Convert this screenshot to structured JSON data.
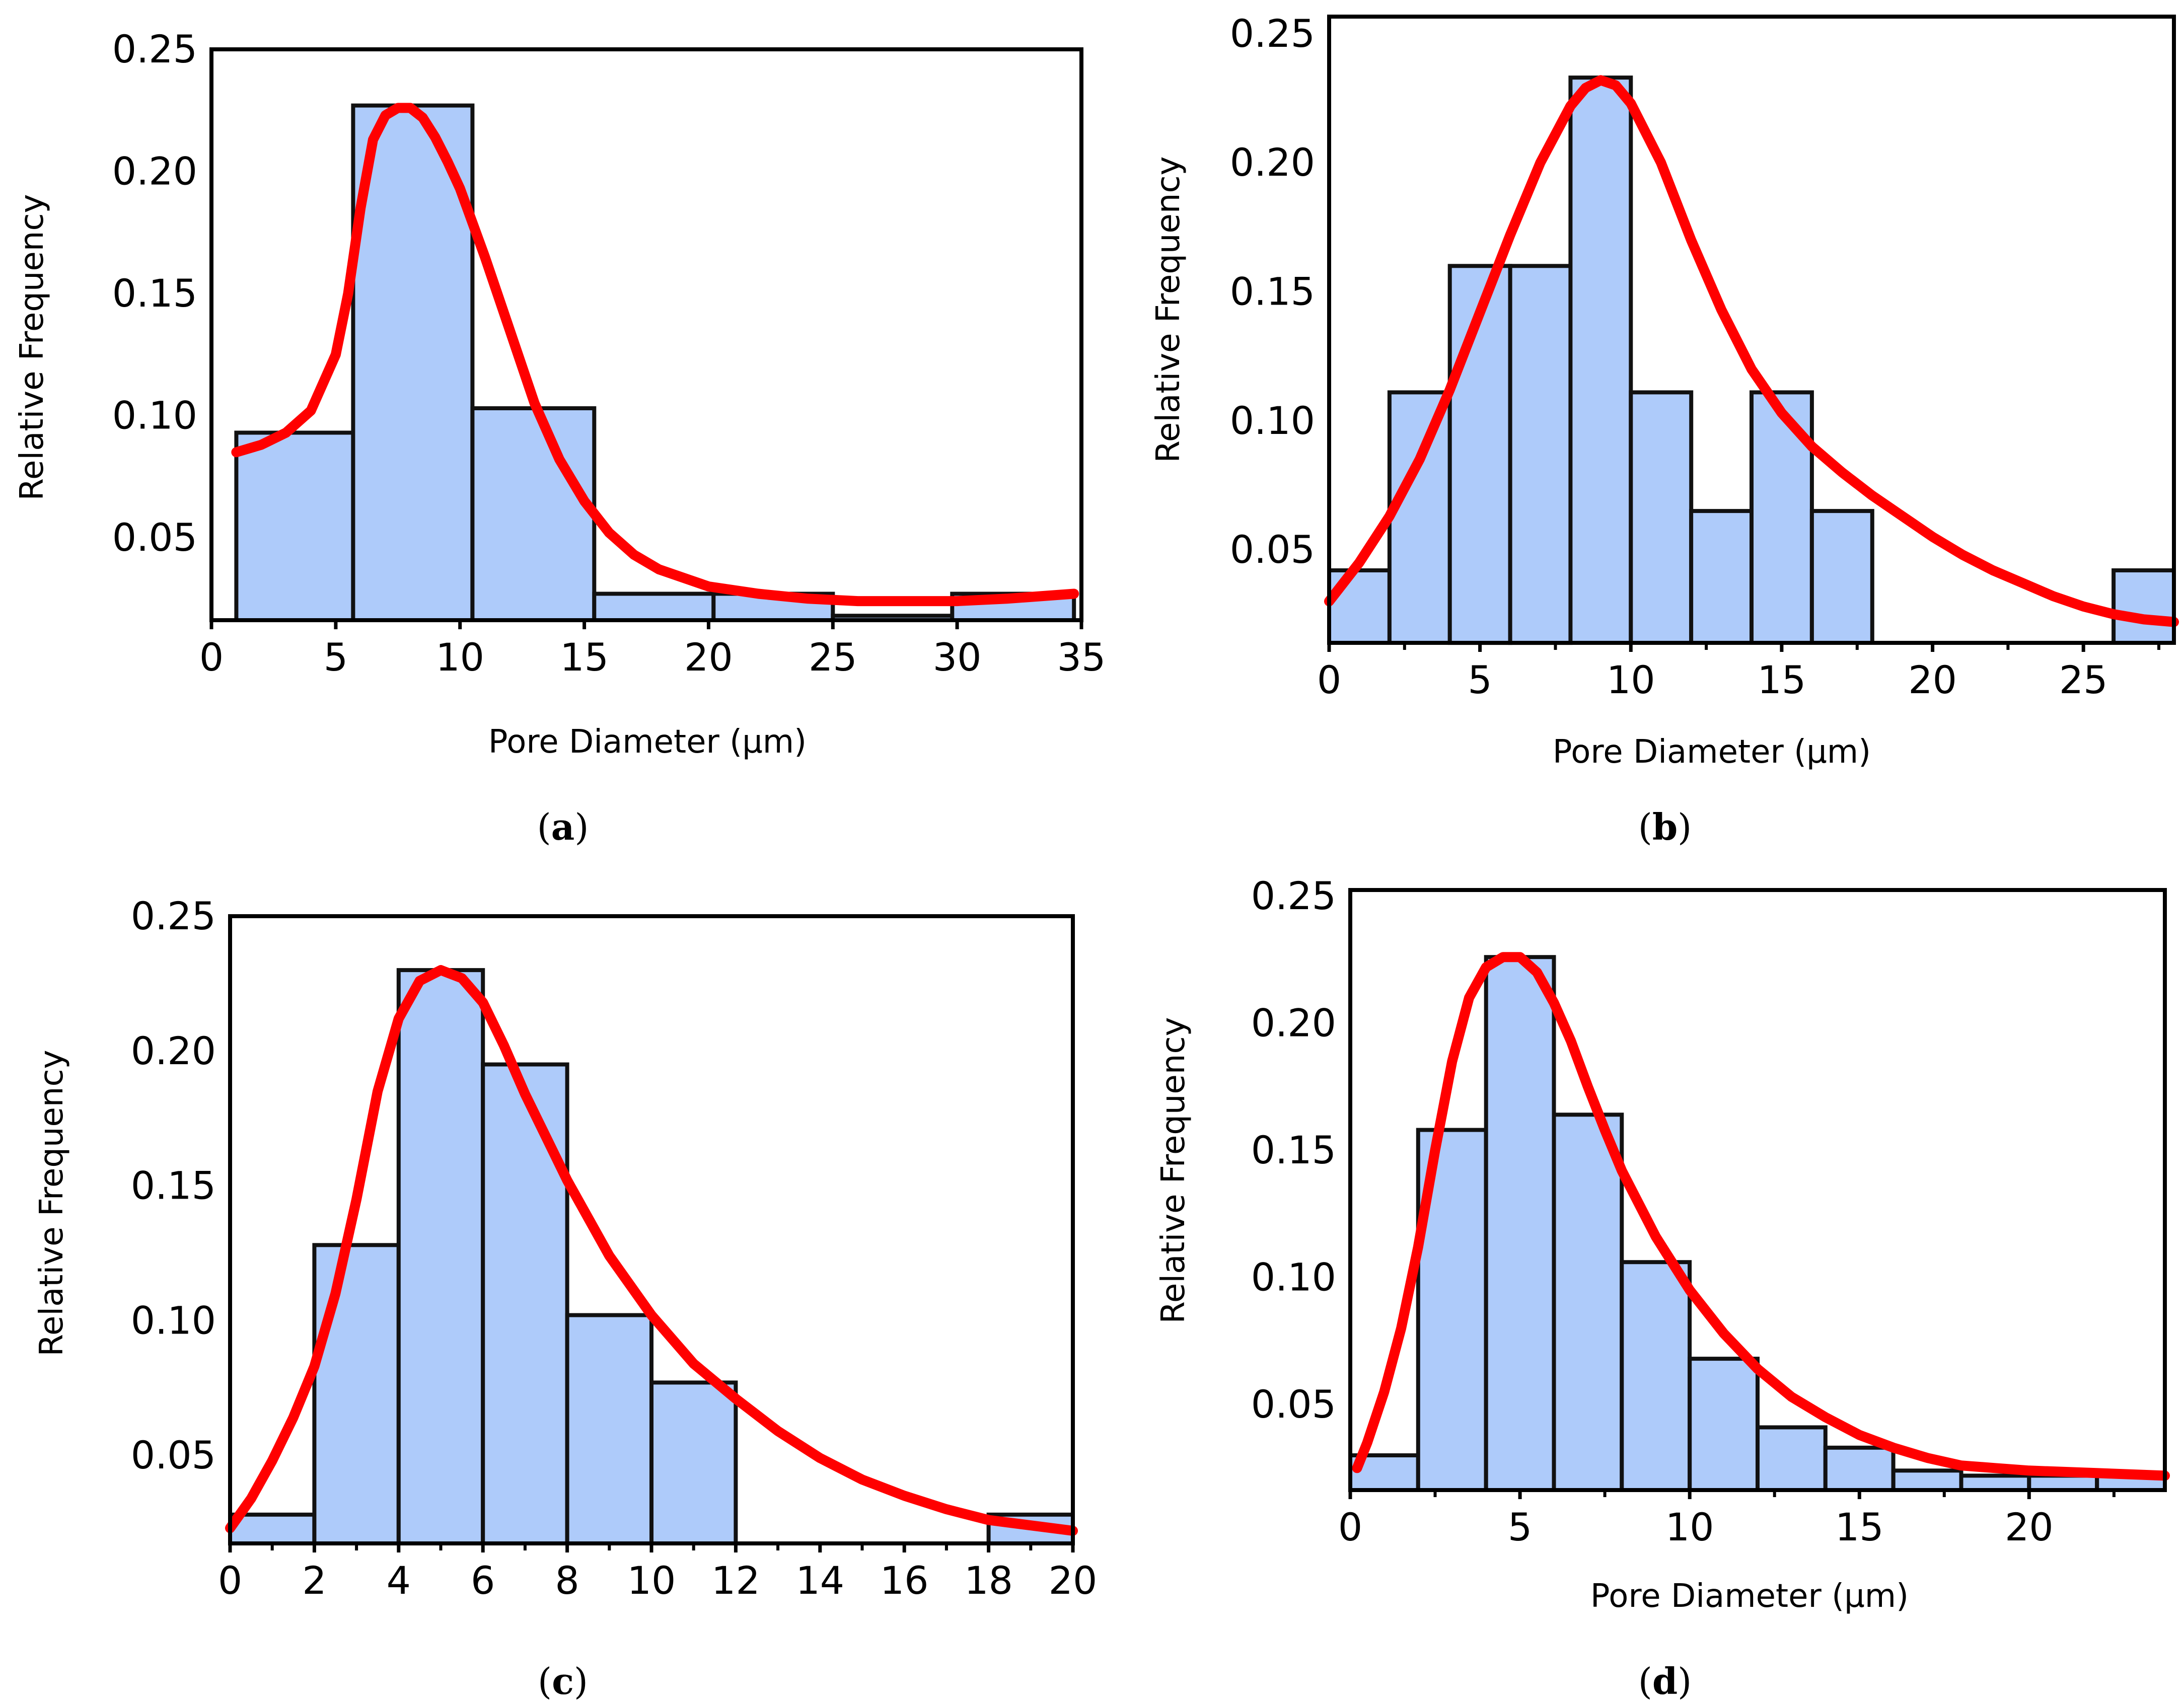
{
  "figure": {
    "bar_color": "#aecbfa",
    "bar_edge_color": "#111111",
    "curve_color": "#ff0000"
  },
  "chart_data": [
    {
      "id": "a",
      "type": "bar",
      "panel_label": "a",
      "xlabel": "Pore Diameter (µm)",
      "ylabel": "Relative Frequency",
      "xlim": [
        0,
        35
      ],
      "ylim": [
        0.018,
        0.25
      ],
      "xticks": [
        "0",
        "5",
        "10",
        "15",
        "20",
        "25",
        "30",
        "35"
      ],
      "yticks": [
        "0.05",
        "0.10",
        "0.15",
        "0.20",
        "0.25"
      ],
      "grid": false,
      "bins": [
        {
          "start": 1,
          "end": 5.7,
          "value": 0.093
        },
        {
          "start": 5.7,
          "end": 10.5,
          "value": 0.227
        },
        {
          "start": 10.5,
          "end": 15.4,
          "value": 0.103
        },
        {
          "start": 15.4,
          "end": 20.2,
          "value": 0.027
        },
        {
          "start": 20.2,
          "end": 25.0,
          "value": 0.027
        },
        {
          "start": 25.0,
          "end": 29.8,
          "value": 0.018
        },
        {
          "start": 29.8,
          "end": 34.7,
          "value": 0.027
        }
      ],
      "fit_curve": {
        "x": [
          1,
          2,
          3,
          4,
          5,
          5.5,
          6,
          6.5,
          7,
          7.5,
          8,
          8.5,
          9,
          9.5,
          10,
          11,
          12,
          13,
          14,
          15,
          16,
          17,
          18,
          20,
          22,
          24,
          26,
          28,
          30,
          32,
          34.7
        ],
        "y": [
          0.085,
          0.088,
          0.093,
          0.102,
          0.125,
          0.15,
          0.185,
          0.213,
          0.223,
          0.226,
          0.226,
          0.222,
          0.214,
          0.204,
          0.193,
          0.165,
          0.135,
          0.105,
          0.082,
          0.065,
          0.052,
          0.043,
          0.037,
          0.03,
          0.027,
          0.025,
          0.024,
          0.024,
          0.024,
          0.025,
          0.027
        ]
      }
    },
    {
      "id": "b",
      "type": "bar",
      "panel_label": "b",
      "xlabel": "Pore Diameter (µm)",
      "ylabel": "Relative Frequency",
      "xlim": [
        0,
        28
      ],
      "ylim": [
        0.018,
        0.25
      ],
      "xticks": [
        "0",
        "5",
        "10",
        "15",
        "20",
        "25"
      ],
      "yticks": [
        "0.05",
        "0.10",
        "0.15",
        "0.20",
        "0.25"
      ],
      "grid": false,
      "bins": [
        {
          "start": 0,
          "end": 2,
          "value": 0.042
        },
        {
          "start": 2,
          "end": 4,
          "value": 0.111
        },
        {
          "start": 4,
          "end": 6,
          "value": 0.16
        },
        {
          "start": 6,
          "end": 8,
          "value": 0.16
        },
        {
          "start": 8,
          "end": 10,
          "value": 0.233
        },
        {
          "start": 10,
          "end": 12,
          "value": 0.111
        },
        {
          "start": 12,
          "end": 14,
          "value": 0.065
        },
        {
          "start": 14,
          "end": 16,
          "value": 0.111
        },
        {
          "start": 16,
          "end": 18,
          "value": 0.065
        },
        {
          "start": 26,
          "end": 28,
          "value": 0.042
        }
      ],
      "fit_curve": {
        "x": [
          0,
          1,
          2,
          3,
          4,
          5,
          6,
          7,
          8,
          8.5,
          9,
          9.5,
          10,
          11,
          12,
          13,
          14,
          15,
          16,
          17,
          18,
          19,
          20,
          21,
          22,
          23,
          24,
          25,
          26,
          27,
          28
        ],
        "y": [
          0.03,
          0.045,
          0.063,
          0.085,
          0.112,
          0.142,
          0.172,
          0.2,
          0.222,
          0.229,
          0.232,
          0.23,
          0.223,
          0.2,
          0.17,
          0.143,
          0.12,
          0.103,
          0.09,
          0.08,
          0.071,
          0.063,
          0.055,
          0.048,
          0.042,
          0.037,
          0.032,
          0.028,
          0.025,
          0.023,
          0.022
        ]
      }
    },
    {
      "id": "c",
      "type": "bar",
      "panel_label": "c",
      "xlabel": "",
      "ylabel": "Relative Frequency",
      "xlim": [
        0,
        20
      ],
      "ylim": [
        0.018,
        0.25
      ],
      "xticks": [
        "0",
        "2",
        "4",
        "6",
        "8",
        "10",
        "12",
        "14",
        "16",
        "18",
        "20"
      ],
      "yticks": [
        "0.05",
        "0.10",
        "0.15",
        "0.20",
        "0.25"
      ],
      "grid": false,
      "bins": [
        {
          "start": 0,
          "end": 2,
          "value": 0.028
        },
        {
          "start": 2,
          "end": 4,
          "value": 0.128
        },
        {
          "start": 4,
          "end": 6,
          "value": 0.23
        },
        {
          "start": 6,
          "end": 8,
          "value": 0.195
        },
        {
          "start": 8,
          "end": 10,
          "value": 0.102
        },
        {
          "start": 10,
          "end": 12,
          "value": 0.077
        },
        {
          "start": 18,
          "end": 20,
          "value": 0.028
        }
      ],
      "fit_curve": {
        "x": [
          0,
          0.5,
          1,
          1.5,
          2,
          2.5,
          3,
          3.5,
          4,
          4.5,
          5,
          5.5,
          6,
          6.5,
          7,
          7.5,
          8,
          9,
          10,
          11,
          12,
          13,
          14,
          15,
          16,
          17,
          18,
          19,
          20
        ],
        "y": [
          0.023,
          0.034,
          0.048,
          0.064,
          0.083,
          0.11,
          0.145,
          0.185,
          0.212,
          0.226,
          0.23,
          0.227,
          0.218,
          0.202,
          0.184,
          0.168,
          0.152,
          0.124,
          0.102,
          0.084,
          0.071,
          0.059,
          0.049,
          0.041,
          0.035,
          0.03,
          0.026,
          0.024,
          0.022
        ]
      }
    },
    {
      "id": "d",
      "type": "bar",
      "panel_label": "d",
      "xlabel": "Pore Diameter (µm)",
      "ylabel": "Relative Frequency",
      "xlim": [
        0,
        24
      ],
      "ylim": [
        0.018,
        0.25
      ],
      "xticks": [
        "0",
        "5",
        "10",
        "15",
        "20"
      ],
      "yticks": [
        "0.05",
        "0.10",
        "0.15",
        "0.20",
        "0.25"
      ],
      "grid": false,
      "bins": [
        {
          "start": 0,
          "end": 2,
          "value": 0.03
        },
        {
          "start": 2,
          "end": 4,
          "value": 0.158
        },
        {
          "start": 4,
          "end": 6,
          "value": 0.226
        },
        {
          "start": 6,
          "end": 8,
          "value": 0.164
        },
        {
          "start": 8,
          "end": 10,
          "value": 0.106
        },
        {
          "start": 10,
          "end": 12,
          "value": 0.068
        },
        {
          "start": 12,
          "end": 14,
          "value": 0.041
        },
        {
          "start": 14,
          "end": 16,
          "value": 0.033
        },
        {
          "start": 16,
          "end": 18,
          "value": 0.024
        },
        {
          "start": 18,
          "end": 20,
          "value": 0.022
        },
        {
          "start": 20,
          "end": 22,
          "value": 0.022
        },
        {
          "start": 22,
          "end": 24,
          "value": 0.022
        }
      ],
      "fit_curve": {
        "x": [
          0.2,
          0.5,
          1,
          1.5,
          2,
          2.5,
          3,
          3.5,
          4,
          4.5,
          5,
          5.5,
          6,
          6.5,
          7,
          7.5,
          8,
          9,
          10,
          11,
          12,
          13,
          14,
          15,
          16,
          17,
          18,
          19,
          20,
          22,
          24
        ],
        "y": [
          0.025,
          0.035,
          0.055,
          0.08,
          0.112,
          0.15,
          0.185,
          0.21,
          0.222,
          0.226,
          0.226,
          0.22,
          0.208,
          0.193,
          0.175,
          0.158,
          0.142,
          0.116,
          0.095,
          0.078,
          0.064,
          0.053,
          0.045,
          0.038,
          0.033,
          0.029,
          0.026,
          0.025,
          0.024,
          0.023,
          0.022
        ]
      }
    }
  ]
}
